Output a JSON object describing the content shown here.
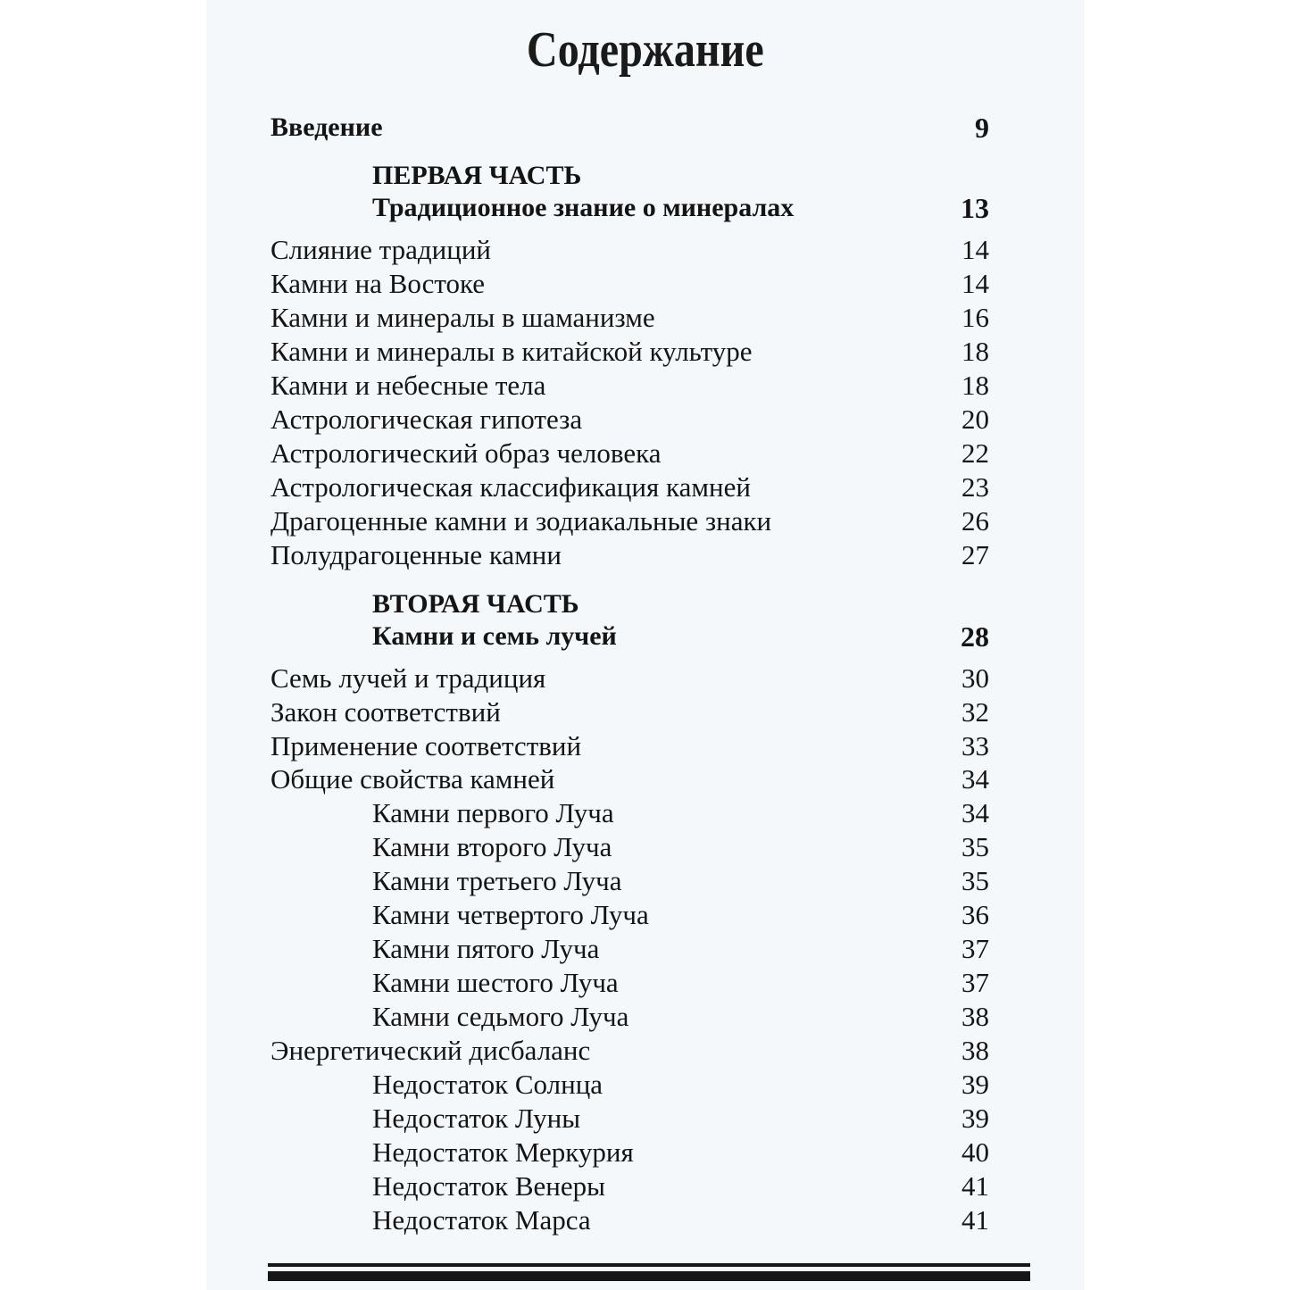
{
  "title": "Содержание",
  "entries": [
    {
      "text": "Введение",
      "page": "9",
      "level": 0,
      "bold": true
    },
    {
      "text": "ПЕРВАЯ ЧАСТЬ",
      "page": "",
      "level": 1,
      "bold": true
    },
    {
      "text": "Традиционное знание о минералах",
      "page": "13",
      "level": 1,
      "bold": true
    },
    {
      "text": "Слияние традиций",
      "page": "14",
      "level": 0
    },
    {
      "text": "Камни на Востоке",
      "page": "14",
      "level": 0
    },
    {
      "text": "Камни и минералы в шаманизме",
      "page": "16",
      "level": 0
    },
    {
      "text": "Камни и минералы в китайской культуре",
      "page": "18",
      "level": 0
    },
    {
      "text": "Камни и небесные тела",
      "page": "18",
      "level": 0
    },
    {
      "text": "Астрологическая гипотеза",
      "page": "20",
      "level": 0
    },
    {
      "text": "Астрологический образ человека",
      "page": "22",
      "level": 0
    },
    {
      "text": "Астрологическая классификация камней",
      "page": "23",
      "level": 0
    },
    {
      "text": "Драгоценные камни и зодиакальные знаки",
      "page": "26",
      "level": 0
    },
    {
      "text": "Полудрагоценные камни",
      "page": "27",
      "level": 0
    },
    {
      "text": "ВТОРАЯ ЧАСТЬ",
      "page": "",
      "level": 1,
      "bold": true
    },
    {
      "text": "Камни и семь лучей",
      "page": "28",
      "level": 1,
      "bold": true
    },
    {
      "text": "Семь лучей и традиция",
      "page": "30",
      "level": 0
    },
    {
      "text": "Закон соответствий",
      "page": "32",
      "level": 0
    },
    {
      "text": "Применение соответствий",
      "page": "33",
      "level": 0
    },
    {
      "text": "Общие свойства камней",
      "page": "34",
      "level": 0
    },
    {
      "text": "Камни первого Луча",
      "page": "34",
      "level": 1
    },
    {
      "text": "Камни второго Луча",
      "page": "35",
      "level": 1
    },
    {
      "text": "Камни третьего Луча",
      "page": "35",
      "level": 1
    },
    {
      "text": "Камни четвертого Луча",
      "page": "36",
      "level": 1
    },
    {
      "text": "Камни пятого Луча",
      "page": "37",
      "level": 1
    },
    {
      "text": "Камни шестого Луча",
      "page": "37",
      "level": 1
    },
    {
      "text": "Камни седьмого Луча",
      "page": "38",
      "level": 1
    },
    {
      "text": "Энергетический дисбаланс",
      "page": "38",
      "level": 0
    },
    {
      "text": "Недостаток Солнца",
      "page": "39",
      "level": 1
    },
    {
      "text": "Недостаток Луны",
      "page": "39",
      "level": 1
    },
    {
      "text": "Недостаток Меркурия",
      "page": "40",
      "level": 1
    },
    {
      "text": "Недостаток Венеры",
      "page": "41",
      "level": 1
    },
    {
      "text": "Недостаток Марса",
      "page": "41",
      "level": 1
    }
  ]
}
